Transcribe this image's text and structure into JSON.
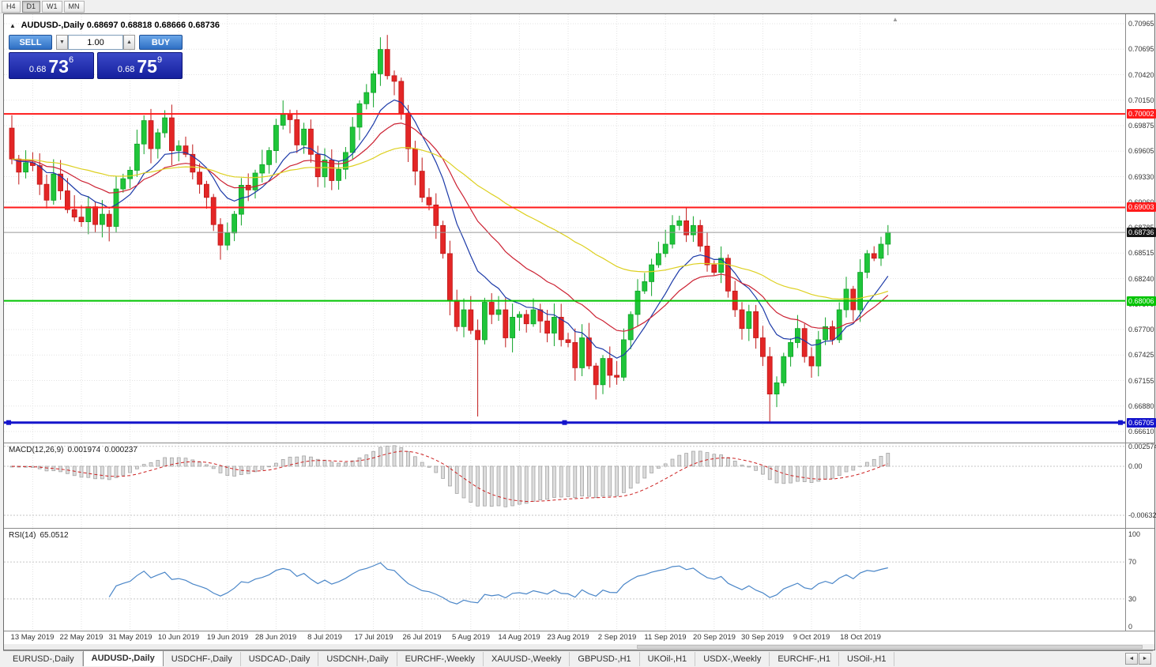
{
  "toolbar": {
    "timeframes": [
      {
        "label": "H4",
        "active": false
      },
      {
        "label": "D1",
        "active": true
      },
      {
        "label": "W1",
        "active": false
      },
      {
        "label": "MN",
        "active": false
      }
    ]
  },
  "icons": {
    "collapse": "▲",
    "spinner_down": "▼",
    "spinner_up": "▲",
    "shift_marker": "▲",
    "tab_scroll_left": "◄",
    "tab_scroll_right": "►"
  },
  "chart_header": {
    "symbol_title": "AUDUSD-,Daily",
    "ohlc": "0.68697 0.68818 0.68666 0.68736"
  },
  "trade_panel": {
    "sell_label": "SELL",
    "buy_label": "BUY",
    "volume": "1.00",
    "sell_price": {
      "prefix": "0.68",
      "big": "73",
      "sup": "6"
    },
    "buy_price": {
      "prefix": "0.68",
      "big": "75",
      "sup": "9"
    }
  },
  "price_axis": {
    "max": 0.70965,
    "min": 0.6661,
    "ticks": [
      "0.70965",
      "0.70695",
      "0.70420",
      "0.70150",
      "0.69875",
      "0.69605",
      "0.69330",
      "0.69060",
      "0.68785",
      "0.68515",
      "0.68240",
      "0.67970",
      "0.67700",
      "0.67425",
      "0.67155",
      "0.66880",
      "0.66610"
    ]
  },
  "levels": [
    {
      "price": 0.70002,
      "label": "0.70002",
      "color": "#ff1a1a",
      "width": 2,
      "selected": false
    },
    {
      "price": 0.69003,
      "label": "0.69003",
      "color": "#ff1a1a",
      "width": 2,
      "selected": false
    },
    {
      "price": 0.68006,
      "label": "0.68006",
      "color": "#00c400",
      "width": 2,
      "selected": false
    },
    {
      "price": 0.66705,
      "label": "0.66705",
      "color": "#1515cc",
      "width": 3,
      "selected": true
    }
  ],
  "current_price": {
    "price": 0.68736,
    "label": "0.68736",
    "badge_bg": "#161616"
  },
  "chart_data": {
    "type": "candlestick",
    "symbol": "AUDUSD",
    "timeframe": "Daily",
    "first_open": 0.6985,
    "closes": [
      0.6952,
      0.6938,
      0.6948,
      0.6945,
      0.6925,
      0.6908,
      0.6936,
      0.6918,
      0.6898,
      0.689,
      0.6885,
      0.6901,
      0.6882,
      0.6893,
      0.688,
      0.692,
      0.6931,
      0.694,
      0.6968,
      0.6993,
      0.6963,
      0.698,
      0.6996,
      0.6961,
      0.6966,
      0.6957,
      0.6938,
      0.6925,
      0.6911,
      0.6882,
      0.686,
      0.6873,
      0.6893,
      0.6924,
      0.6919,
      0.6937,
      0.6946,
      0.6961,
      0.6988,
      0.7,
      0.6994,
      0.6967,
      0.6984,
      0.6957,
      0.6933,
      0.6951,
      0.6929,
      0.6941,
      0.6959,
      0.6986,
      0.7011,
      0.7023,
      0.7043,
      0.7069,
      0.7041,
      0.7035,
      0.7001,
      0.6963,
      0.6939,
      0.6911,
      0.6903,
      0.6881,
      0.6851,
      0.6801,
      0.6773,
      0.6791,
      0.6769,
      0.6759,
      0.6799,
      0.6786,
      0.6791,
      0.6761,
      0.6783,
      0.6786,
      0.6776,
      0.6791,
      0.6779,
      0.6766,
      0.6783,
      0.6759,
      0.6756,
      0.6729,
      0.6761,
      0.6731,
      0.6711,
      0.6739,
      0.6721,
      0.6719,
      0.6759,
      0.6786,
      0.6811,
      0.6821,
      0.6839,
      0.6851,
      0.6861,
      0.6881,
      0.6886,
      0.6871,
      0.6881,
      0.6859,
      0.6839,
      0.6831,
      0.6846,
      0.6811,
      0.6791,
      0.6771,
      0.6789,
      0.6761,
      0.6741,
      0.6701,
      0.6713,
      0.6741,
      0.6756,
      0.6771,
      0.6741,
      0.6731,
      0.6759,
      0.6773,
      0.6759,
      0.6791,
      0.6813,
      0.6791,
      0.6831,
      0.6851,
      0.6846,
      0.6861,
      0.68736
    ],
    "wick_high_overrides": {
      "53": 0.7082
    },
    "wick_low_overrides": {
      "67": 0.6677,
      "109": 0.6671
    },
    "ma": [
      {
        "period": 10,
        "color": "#1c3aa8"
      },
      {
        "period": 21,
        "color": "#cc2233"
      },
      {
        "period": 55,
        "color": "#ddd020"
      }
    ],
    "date_labels": [
      {
        "index": 3,
        "text": "13 May 2019"
      },
      {
        "index": 10,
        "text": "22 May 2019"
      },
      {
        "index": 17,
        "text": "31 May 2019"
      },
      {
        "index": 24,
        "text": "10 Jun 2019"
      },
      {
        "index": 31,
        "text": "19 Jun 2019"
      },
      {
        "index": 38,
        "text": "28 Jun 2019"
      },
      {
        "index": 45,
        "text": "8 Jul 2019"
      },
      {
        "index": 52,
        "text": "17 Jul 2019"
      },
      {
        "index": 59,
        "text": "26 Jul 2019"
      },
      {
        "index": 66,
        "text": "5 Aug 2019"
      },
      {
        "index": 73,
        "text": "14 Aug 2019"
      },
      {
        "index": 80,
        "text": "23 Aug 2019"
      },
      {
        "index": 87,
        "text": "2 Sep 2019"
      },
      {
        "index": 94,
        "text": "11 Sep 2019"
      },
      {
        "index": 101,
        "text": "20 Sep 2019"
      },
      {
        "index": 108,
        "text": "30 Sep 2019"
      },
      {
        "index": 115,
        "text": "9 Oct 2019"
      },
      {
        "index": 122,
        "text": "18 Oct 2019"
      }
    ]
  },
  "macd_panel": {
    "name": "MACD(12,26,9)",
    "value": "0.001974",
    "signal_value": "0.000237",
    "fast": 12,
    "slow": 26,
    "signal": 9,
    "axis_ticks": [
      "0.002574",
      "0.00",
      "-0.006326"
    ]
  },
  "rsi_panel": {
    "name": "RSI(14)",
    "value": "65.0512",
    "period": 14,
    "levels": [
      70,
      30
    ],
    "axis_ticks": [
      "100",
      "70",
      "30",
      "0"
    ]
  },
  "tabs": [
    {
      "label": "EURUSD-,Daily",
      "active": false
    },
    {
      "label": "AUDUSD-,Daily",
      "active": true
    },
    {
      "label": "USDCHF-,Daily",
      "active": false
    },
    {
      "label": "USDCAD-,Daily",
      "active": false
    },
    {
      "label": "USDCNH-,Daily",
      "active": false
    },
    {
      "label": "EURCHF-,Weekly",
      "active": false
    },
    {
      "label": "XAUUSD-,Weekly",
      "active": false
    },
    {
      "label": "GBPUSD-,H1",
      "active": false
    },
    {
      "label": "UKOil-,H1",
      "active": false
    },
    {
      "label": "USDX-,Weekly",
      "active": false
    },
    {
      "label": "EURCHF-,H1",
      "active": false
    },
    {
      "label": "USOil-,H1",
      "active": false
    }
  ]
}
